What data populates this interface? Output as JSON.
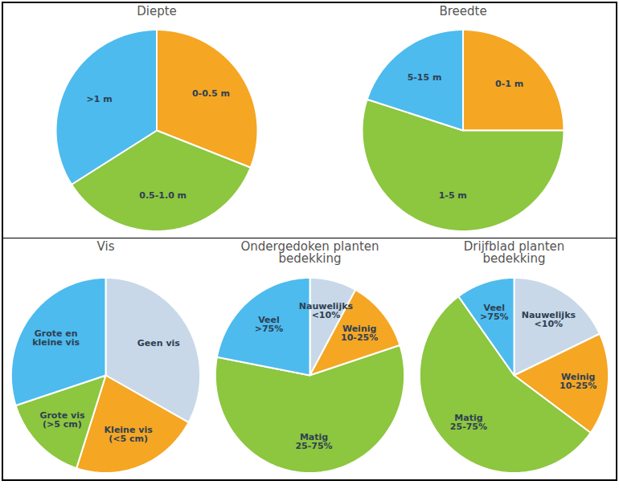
{
  "chart_data": [
    {
      "type": "pie",
      "title": "Diepte",
      "categories": [
        "0-0.5 m",
        "0.5-1.0 m",
        ">1 m"
      ],
      "values": [
        31,
        35,
        34
      ],
      "colors": [
        "#F5A623",
        "#8DC63F",
        "#4DBBEE"
      ]
    },
    {
      "type": "pie",
      "title": "Breedte",
      "categories": [
        "0-1 m",
        "1-5 m",
        "5-15 m"
      ],
      "values": [
        25,
        55,
        20
      ],
      "colors": [
        "#F5A623",
        "#8DC63F",
        "#4DBBEE"
      ]
    },
    {
      "type": "pie",
      "title": "Vis",
      "categories": [
        "Geen vis",
        "Kleine vis\n(<5 cm)",
        "Grote vis\n(>5 cm)",
        "Grote en\nkleine vis"
      ],
      "values": [
        33,
        22,
        15,
        30
      ],
      "colors": [
        "#C8D8E8",
        "#F5A623",
        "#8DC63F",
        "#4DBBEE"
      ]
    },
    {
      "type": "pie",
      "title": "Ondergedoken planten\nbedekking",
      "categories": [
        "Nauwelijks\n<10%",
        "Weinig\n10-25%",
        "Matig\n25-75%",
        "Veel\n>75%"
      ],
      "values": [
        8,
        12,
        58,
        22
      ],
      "colors": [
        "#C8D8E8",
        "#F5A623",
        "#8DC63F",
        "#4DBBEE"
      ]
    },
    {
      "type": "pie",
      "title": "Drijfblad planten\nbedekking",
      "categories": [
        "Nauwelijks\n<10%",
        "Weinig\n10-25%",
        "Matig\n25-75%",
        "Veel\n>75%"
      ],
      "values": [
        18,
        17,
        55,
        10
      ],
      "colors": [
        "#C8D8E8",
        "#F5A623",
        "#8DC63F",
        "#4DBBEE"
      ]
    }
  ]
}
